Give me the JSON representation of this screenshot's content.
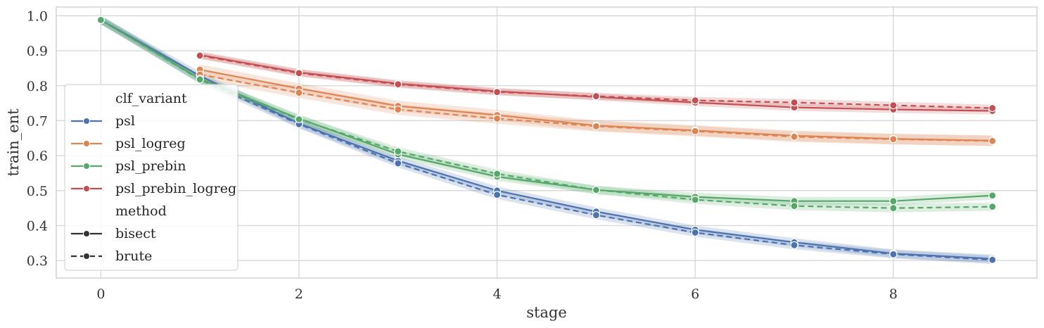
{
  "chart_data": {
    "type": "line",
    "xlabel": "stage",
    "ylabel": "train_ent",
    "xlim": [
      -0.45,
      9.45
    ],
    "ylim": [
      0.25,
      1.025
    ],
    "xticks": [
      0,
      2,
      4,
      6,
      8
    ],
    "yticks": [
      0.3,
      0.4,
      0.5,
      0.6,
      0.7,
      0.8,
      0.9,
      1.0
    ],
    "grid": true,
    "legend_placement": "center-left",
    "legend_title_hue": "clf_variant",
    "legend_title_style": "method",
    "styles": [
      {
        "name": "bisect",
        "dash": "solid"
      },
      {
        "name": "brute",
        "dash": "dashed"
      }
    ],
    "series": [
      {
        "name": "psl",
        "color": "#4C72B0",
        "bisect": {
          "x": [
            0,
            1,
            2,
            3,
            4,
            5,
            6,
            7,
            8,
            9
          ],
          "y": [
            0.988,
            0.828,
            0.692,
            0.585,
            0.5,
            0.44,
            0.388,
            0.352,
            0.32,
            0.305
          ],
          "ci": 0.012
        },
        "brute": {
          "x": [
            0,
            1,
            2,
            3,
            4,
            5,
            6,
            7,
            8,
            9
          ],
          "y": [
            0.988,
            0.818,
            0.69,
            0.578,
            0.488,
            0.43,
            0.38,
            0.344,
            0.318,
            0.302
          ],
          "ci": 0.012
        }
      },
      {
        "name": "psl_logreg",
        "color": "#DD8452",
        "bisect": {
          "x": [
            1,
            2,
            3,
            4,
            5,
            6,
            7,
            8,
            9
          ],
          "y": [
            0.846,
            0.792,
            0.742,
            0.716,
            0.686,
            0.672,
            0.657,
            0.648,
            0.643
          ],
          "ci": 0.015
        },
        "brute": {
          "x": [
            1,
            2,
            3,
            4,
            5,
            6,
            7,
            8,
            9
          ],
          "y": [
            0.832,
            0.78,
            0.732,
            0.706,
            0.684,
            0.67,
            0.654,
            0.647,
            0.642
          ],
          "ci": 0.015
        }
      },
      {
        "name": "psl_prebin",
        "color": "#55A868",
        "bisect": {
          "x": [
            0,
            1,
            2,
            3,
            4,
            5,
            6,
            7,
            8,
            9
          ],
          "y": [
            0.988,
            0.82,
            0.706,
            0.604,
            0.54,
            0.502,
            0.482,
            0.47,
            0.47,
            0.486
          ],
          "ci": 0.012
        },
        "brute": {
          "x": [
            0,
            1,
            2,
            3,
            4,
            5,
            6,
            7,
            8,
            9
          ],
          "y": [
            0.988,
            0.818,
            0.704,
            0.612,
            0.548,
            0.502,
            0.474,
            0.456,
            0.45,
            0.454
          ],
          "ci": 0.012
        }
      },
      {
        "name": "psl_prebin_logreg",
        "color": "#C44E52",
        "bisect": {
          "x": [
            1,
            2,
            3,
            4,
            5,
            6,
            7,
            8,
            9
          ],
          "y": [
            0.888,
            0.838,
            0.806,
            0.784,
            0.768,
            0.752,
            0.738,
            0.732,
            0.728
          ],
          "ci": 0.01
        },
        "brute": {
          "x": [
            1,
            2,
            3,
            4,
            5,
            6,
            7,
            8,
            9
          ],
          "y": [
            0.886,
            0.836,
            0.804,
            0.782,
            0.77,
            0.758,
            0.752,
            0.744,
            0.736
          ],
          "ci": 0.01
        }
      }
    ]
  }
}
